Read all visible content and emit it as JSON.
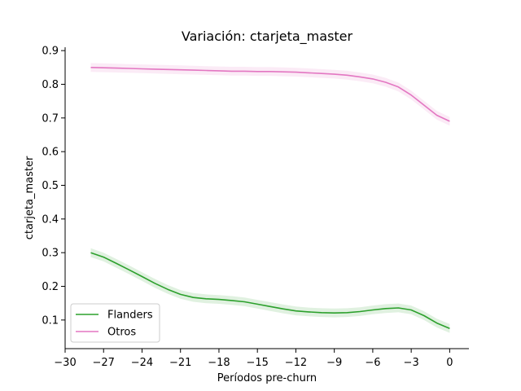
{
  "chart_data": {
    "type": "line",
    "title": "Variación: ctarjeta_master",
    "xlabel": "Períodos pre-churn",
    "ylabel": "ctarjeta_master",
    "xlim": [
      -30,
      1.5
    ],
    "ylim": [
      0.015,
      0.91
    ],
    "xticks": [
      -30,
      -27,
      -24,
      -21,
      -18,
      -15,
      -12,
      -9,
      -6,
      -3,
      0
    ],
    "xtick_labels": [
      "−30",
      "−27",
      "−24",
      "−21",
      "−18",
      "−15",
      "−12",
      "−9",
      "−6",
      "−3",
      "0"
    ],
    "yticks": [
      0.1,
      0.2,
      0.3,
      0.4,
      0.5,
      0.6,
      0.7,
      0.8,
      0.9
    ],
    "ytick_labels": [
      "0.1",
      "0.2",
      "0.3",
      "0.4",
      "0.5",
      "0.6",
      "0.7",
      "0.8",
      "0.9"
    ],
    "legend_position": "lower-left",
    "grid": false,
    "x": [
      -28,
      -27,
      -26,
      -25,
      -24,
      -23,
      -22,
      -21,
      -20,
      -19,
      -18,
      -17,
      -16,
      -15,
      -14,
      -13,
      -12,
      -11,
      -10,
      -9,
      -8,
      -7,
      -6,
      -5,
      -4,
      -3,
      -2,
      -1,
      0
    ],
    "series": [
      {
        "name": "Flanders",
        "color": "#2ca02c",
        "band_color": "#2ca02c",
        "values": [
          0.3,
          0.287,
          0.268,
          0.249,
          0.229,
          0.209,
          0.191,
          0.176,
          0.167,
          0.163,
          0.161,
          0.158,
          0.154,
          0.147,
          0.14,
          0.133,
          0.127,
          0.124,
          0.122,
          0.121,
          0.122,
          0.125,
          0.13,
          0.134,
          0.136,
          0.13,
          0.113,
          0.091,
          0.075
        ],
        "band_width": 0.013
      },
      {
        "name": "Otros",
        "color": "#e377c2",
        "band_color": "#e377c2",
        "values": [
          0.85,
          0.849,
          0.848,
          0.847,
          0.846,
          0.845,
          0.844,
          0.843,
          0.842,
          0.841,
          0.84,
          0.839,
          0.839,
          0.838,
          0.838,
          0.837,
          0.836,
          0.834,
          0.832,
          0.83,
          0.827,
          0.822,
          0.816,
          0.806,
          0.792,
          0.768,
          0.738,
          0.708,
          0.69
        ],
        "band_width": 0.013
      }
    ]
  }
}
